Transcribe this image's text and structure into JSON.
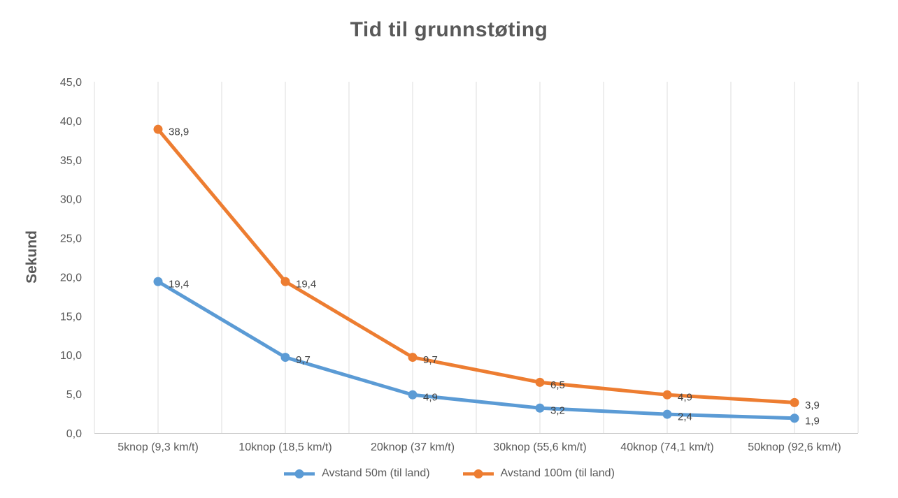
{
  "chart_data": {
    "type": "line",
    "title": "Tid til grunnstøting",
    "ylabel": "Sekund",
    "xlabel": "",
    "categories": [
      "5knop (9,3 km/t)",
      "10knop  (18,5 km/t)",
      "20knop (37 km/t)",
      "30knop (55,6 km/t)",
      "40knop (74,1 km/t)",
      "50knop (92,6 km/t)"
    ],
    "series": [
      {
        "name": "Avstand 50m (til land)",
        "color": "#5B9BD5",
        "values": [
          19.4,
          9.7,
          4.9,
          3.2,
          2.4,
          1.9
        ],
        "point_labels": [
          "19,4",
          "9,7",
          "4,9",
          "3,2",
          "2,4",
          "1,9"
        ]
      },
      {
        "name": "Avstand 100m (til land)",
        "color": "#ED7D31",
        "values": [
          38.9,
          19.4,
          9.7,
          6.5,
          4.9,
          3.9
        ],
        "point_labels": [
          "38,9",
          "19,4",
          "9,7",
          "6,5",
          "4,9",
          "3,9"
        ]
      }
    ],
    "y_ticks": [
      "0,0",
      "5,0",
      "10,0",
      "15,0",
      "20,0",
      "25,0",
      "30,0",
      "35,0",
      "40,0",
      "45,0"
    ],
    "ylim": [
      0,
      45
    ],
    "grid": "vertical-only",
    "legend_position": "bottom",
    "colors": {
      "gridline": "#DCDCDC",
      "axis_line": "#C9C9C9",
      "tick_text": "#595959",
      "title_text": "#595959",
      "data_label_text": "#404040",
      "background": "#FFFFFF"
    }
  }
}
